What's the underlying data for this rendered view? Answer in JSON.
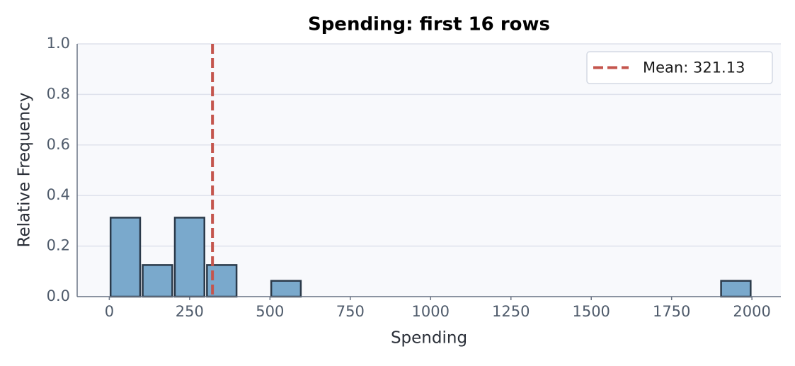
{
  "chart_data": {
    "type": "histogram",
    "title": "Spending: first 16 rows",
    "x_label": "Spending",
    "y_label": "Relative Frequency",
    "bins": [
      0,
      100,
      200,
      300,
      400,
      500,
      600,
      700,
      800,
      900,
      1000,
      1100,
      1200,
      1300,
      1400,
      1500,
      1600,
      1700,
      1800,
      1900,
      2000
    ],
    "values": [
      0.3125,
      0.125,
      0.3125,
      0.125,
      0,
      0.0625,
      0,
      0,
      0,
      0,
      0,
      0,
      0,
      0,
      0,
      0,
      0,
      0,
      0,
      0.0625
    ],
    "color": "#7aa9cc",
    "edge_color": "#2b3a4a",
    "mean_line": {
      "value": 321.13,
      "label": "Mean: 321.13",
      "color": "#c4554d"
    },
    "xlim": [
      -100,
      2090
    ],
    "xticks": [
      0,
      250,
      500,
      750,
      1000,
      1250,
      1500,
      1750,
      2000
    ],
    "ylim": [
      0,
      1
    ],
    "yticks": [
      {
        "value": 0,
        "label": "0.0"
      },
      0.2,
      0.4,
      0.6,
      0.8,
      {
        "value": 1,
        "label": "1.0"
      }
    ],
    "grid": true,
    "legend_position": "upper right"
  }
}
